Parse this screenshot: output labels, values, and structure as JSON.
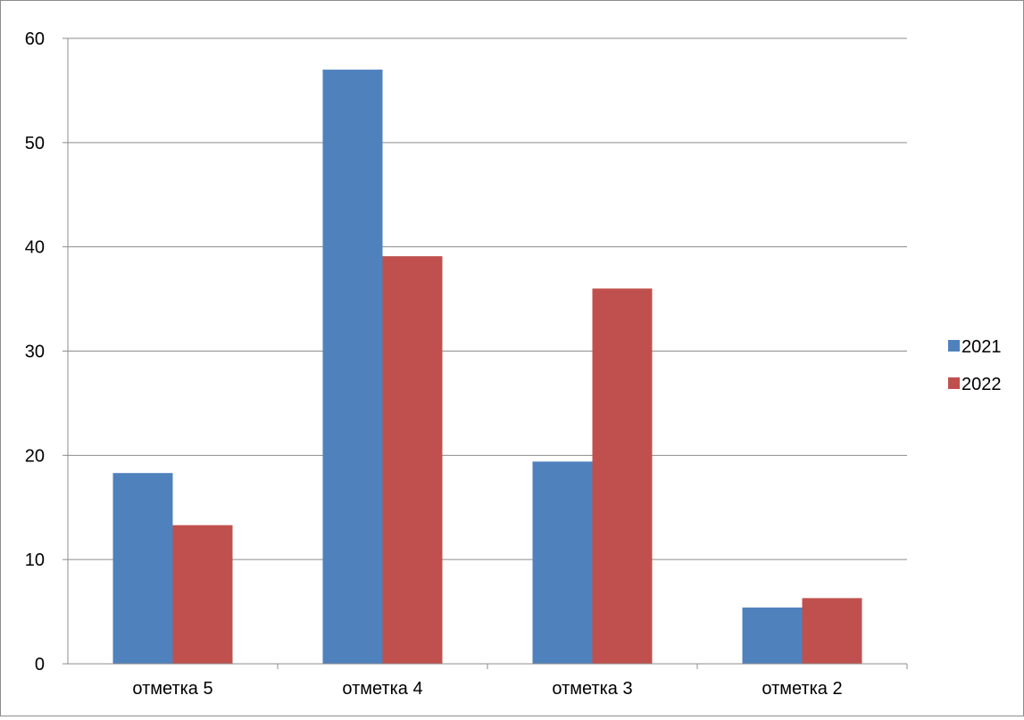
{
  "chart_data": {
    "type": "bar",
    "categories": [
      "отметка 5",
      "отметка 4",
      "отметка 3",
      "отметка 2"
    ],
    "series": [
      {
        "name": "2021",
        "values": [
          18.3,
          57,
          19.4,
          5.4
        ],
        "color": "#4f81bd"
      },
      {
        "name": "2022",
        "values": [
          13.3,
          39.1,
          36,
          6.3
        ],
        "color": "#c0504d"
      }
    ],
    "yticks": [
      "0",
      "10",
      "20",
      "30",
      "40",
      "50",
      "60"
    ],
    "ylim": [
      0,
      60
    ],
    "grid": true,
    "legend_position": "right"
  }
}
